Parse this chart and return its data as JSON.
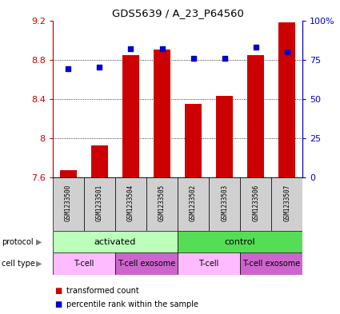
{
  "title": "GDS5639 / A_23_P64560",
  "samples": [
    "GSM1233500",
    "GSM1233501",
    "GSM1233504",
    "GSM1233505",
    "GSM1233502",
    "GSM1233503",
    "GSM1233506",
    "GSM1233507"
  ],
  "bar_values": [
    7.67,
    7.93,
    8.85,
    8.9,
    8.35,
    8.43,
    8.85,
    9.18
  ],
  "percentile_values": [
    69,
    70,
    82,
    82,
    76,
    76,
    83,
    80
  ],
  "ylim": [
    7.6,
    9.2
  ],
  "yticks": [
    7.6,
    8.0,
    8.4,
    8.8,
    9.2
  ],
  "ytick_labels": [
    "7.6",
    "8",
    "8.4",
    "8.8",
    "9.2"
  ],
  "right_yticks": [
    0,
    25,
    50,
    75,
    100
  ],
  "right_ytick_labels": [
    "0",
    "25",
    "50",
    "75",
    "100%"
  ],
  "bar_color": "#cc0000",
  "dot_color": "#0000cc",
  "bar_bottom": 7.6,
  "protocol_groups": [
    {
      "label": "activated",
      "start": 0,
      "end": 4,
      "color": "#bbffbb"
    },
    {
      "label": "control",
      "start": 4,
      "end": 8,
      "color": "#55dd55"
    }
  ],
  "cell_type_groups": [
    {
      "label": "T-cell",
      "start": 0,
      "end": 2,
      "color": "#ffbbff"
    },
    {
      "label": "T-cell exosome",
      "start": 2,
      "end": 4,
      "color": "#cc66cc"
    },
    {
      "label": "T-cell",
      "start": 4,
      "end": 6,
      "color": "#ffbbff"
    },
    {
      "label": "T-cell exosome",
      "start": 6,
      "end": 8,
      "color": "#cc66cc"
    }
  ],
  "legend_items": [
    {
      "label": "transformed count",
      "color": "#cc0000"
    },
    {
      "label": "percentile rank within the sample",
      "color": "#0000cc"
    }
  ],
  "left_axis_color": "#cc0000",
  "right_axis_color": "#0000cc",
  "sample_box_color": "#d0d0d0"
}
